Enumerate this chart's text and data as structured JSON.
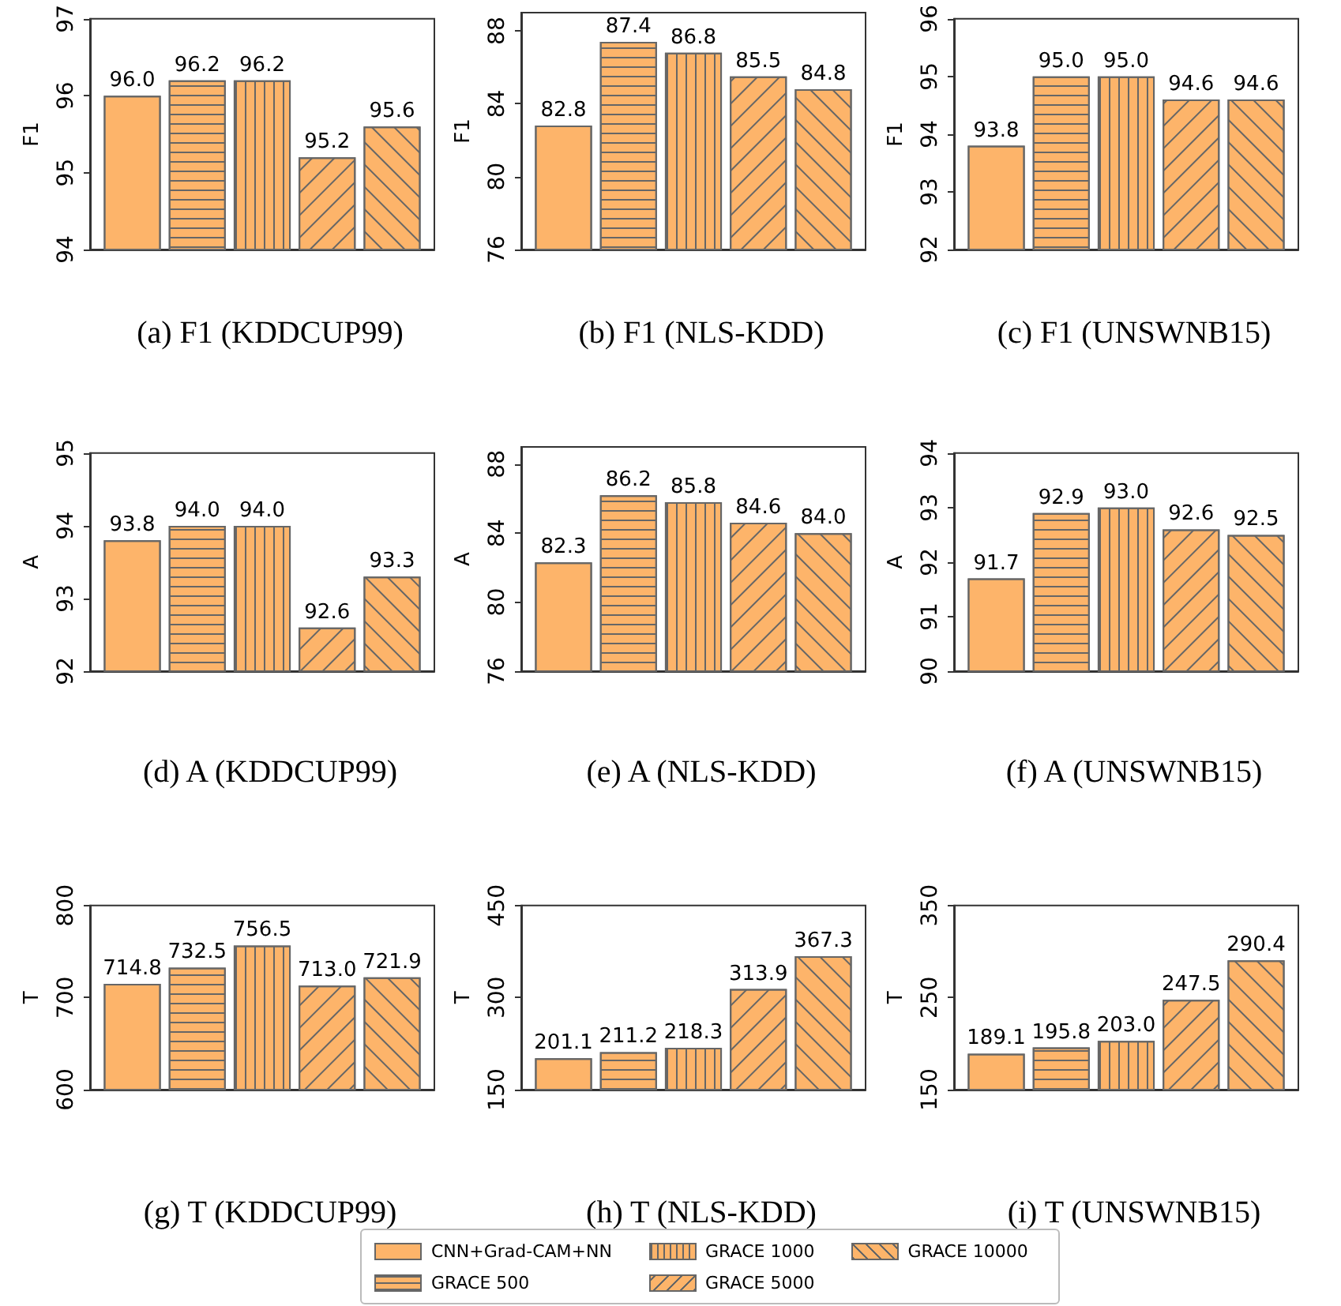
{
  "chart_data": [
    {
      "type": "bar",
      "title": "(a) F1 (KDDCUP99)",
      "ylabel": "F1",
      "categories": [
        null
      ],
      "ylim": [
        94,
        97
      ],
      "yticks": [
        94,
        95,
        96,
        97
      ],
      "tick_labels": "y",
      "legend": "bottom",
      "series": [
        {
          "name": "CNN+Grad-CAM+NN",
          "color": "#fdb46a",
          "values": [
            96.0
          ],
          "value_labels": [
            "96.0"
          ]
        },
        {
          "name": "GRACE 500",
          "color": "#fdb46a",
          "values": [
            96.2
          ],
          "value_labels": [
            "96.2"
          ]
        },
        {
          "name": "GRACE 1000",
          "color": "#fdb46a",
          "values": [
            96.2
          ],
          "value_labels": [
            "96.2"
          ]
        },
        {
          "name": "GRACE 5000",
          "color": "#fdb46a",
          "values": [
            95.2
          ],
          "value_labels": [
            "95.2"
          ]
        },
        {
          "name": "GRACE 10000",
          "color": "#fdb46a",
          "values": [
            95.6
          ],
          "value_labels": [
            "95.6"
          ]
        }
      ]
    },
    {
      "type": "bar",
      "title": "(b) F1 (NLS-KDD)",
      "ylabel": "F1",
      "categories": [
        null
      ],
      "ylim": [
        76,
        89
      ],
      "yticks": [
        76,
        80,
        84,
        88
      ],
      "tick_labels": "y",
      "series": [
        {
          "color": "#fdb46a",
          "values": [
            82.8
          ],
          "value_labels": [
            "82.8"
          ]
        },
        {
          "color": "#fdb46a",
          "values": [
            87.4
          ],
          "value_labels": [
            "87.4"
          ]
        },
        {
          "color": "#fdb46a",
          "values": [
            86.8
          ],
          "value_labels": [
            "86.8"
          ]
        },
        {
          "color": "#fdb46a",
          "values": [
            85.5
          ],
          "value_labels": [
            "85.5"
          ]
        },
        {
          "color": "#fdb46a",
          "values": [
            84.8
          ],
          "value_labels": [
            "84.8"
          ]
        }
      ]
    },
    {
      "type": "bar",
      "title": "(c) F1 (UNSWNB15)",
      "ylabel": "F1",
      "categories": [
        null
      ],
      "ylim": [
        92,
        96
      ],
      "yticks": [
        92,
        93,
        94,
        95,
        96
      ],
      "tick_labels": "y",
      "series": [
        {
          "color": "#fdb46a",
          "values": [
            93.8
          ],
          "value_labels": [
            "93.8"
          ]
        },
        {
          "color": "#fdb46a",
          "values": [
            95.0
          ],
          "value_labels": [
            "95.0"
          ]
        },
        {
          "color": "#fdb46a",
          "values": [
            95.0
          ],
          "value_labels": [
            "95.0"
          ]
        },
        {
          "color": "#fdb46a",
          "values": [
            94.6
          ],
          "value_labels": [
            "94.6"
          ]
        },
        {
          "color": "#fdb46a",
          "values": [
            94.6
          ],
          "value_labels": [
            "94.6"
          ]
        }
      ]
    },
    {
      "type": "bar",
      "title": "(d) A (KDDCUP99)",
      "ylabel": "A",
      "categories": [
        null
      ],
      "ylim": [
        92,
        95
      ],
      "yticks": [
        92,
        93,
        94,
        95
      ],
      "tick_labels": "y",
      "series": [
        {
          "color": "#fdb46a",
          "values": [
            93.8
          ],
          "value_labels": [
            "93.8"
          ]
        },
        {
          "color": "#fdb46a",
          "values": [
            94.0
          ],
          "value_labels": [
            "94.0"
          ]
        },
        {
          "color": "#fdb46a",
          "values": [
            94.0
          ],
          "value_labels": [
            "94.0"
          ]
        },
        {
          "color": "#fdb46a",
          "values": [
            92.6
          ],
          "value_labels": [
            "92.6"
          ]
        },
        {
          "color": "#fdb46a",
          "values": [
            93.3
          ],
          "value_labels": [
            "93.3"
          ]
        }
      ]
    },
    {
      "type": "bar",
      "title": "(e) A (NLS-KDD)",
      "ylabel": "A",
      "categories": [
        null
      ],
      "ylim": [
        76,
        89
      ],
      "yticks": [
        76,
        80,
        84,
        88
      ],
      "tick_labels": "y",
      "series": [
        {
          "color": "#fdb46a",
          "values": [
            82.3
          ],
          "value_labels": [
            "82.3"
          ]
        },
        {
          "color": "#fdb46a",
          "values": [
            86.2
          ],
          "value_labels": [
            "86.2"
          ]
        },
        {
          "color": "#fdb46a",
          "values": [
            85.8
          ],
          "value_labels": [
            "85.8"
          ]
        },
        {
          "color": "#fdb46a",
          "values": [
            84.6
          ],
          "value_labels": [
            "84.6"
          ]
        },
        {
          "color": "#fdb46a",
          "values": [
            84.0
          ],
          "value_labels": [
            "84.0"
          ]
        }
      ]
    },
    {
      "type": "bar",
      "title": "(f) A (UNSWNB15)",
      "ylabel": "A",
      "categories": [
        null
      ],
      "ylim": [
        90,
        94
      ],
      "yticks": [
        90,
        91,
        92,
        93,
        94
      ],
      "tick_labels": "y",
      "series": [
        {
          "color": "#fdb46a",
          "values": [
            91.7
          ],
          "value_labels": [
            "91.7"
          ]
        },
        {
          "color": "#fdb46a",
          "values": [
            92.9
          ],
          "value_labels": [
            "92.9"
          ]
        },
        {
          "color": "#fdb46a",
          "values": [
            93.0
          ],
          "value_labels": [
            "93.0"
          ]
        },
        {
          "color": "#fdb46a",
          "values": [
            92.6
          ],
          "value_labels": [
            "92.6"
          ]
        },
        {
          "color": "#fdb46a",
          "values": [
            92.5
          ],
          "value_labels": [
            "92.5"
          ]
        }
      ]
    },
    {
      "type": "bar",
      "title": "(g) T (KDDCUP99)",
      "ylabel": "T",
      "categories": [
        null
      ],
      "ylim": [
        600,
        800
      ],
      "yticks": [
        600,
        700,
        800
      ],
      "tick_labels": "y",
      "series": [
        {
          "color": "#fdb46a",
          "values": [
            714.8
          ],
          "value_labels": [
            "714.8"
          ]
        },
        {
          "color": "#fdb46a",
          "values": [
            732.5
          ],
          "value_labels": [
            "732.5"
          ]
        },
        {
          "color": "#fdb46a",
          "values": [
            756.5
          ],
          "value_labels": [
            "756.5"
          ]
        },
        {
          "color": "#fdb46a",
          "values": [
            713.0
          ],
          "value_labels": [
            "713.0"
          ]
        },
        {
          "color": "#fdb46a",
          "values": [
            721.9
          ],
          "value_labels": [
            "721.9"
          ]
        }
      ]
    },
    {
      "type": "bar",
      "title": "(h) T (NLS-KDD)",
      "ylabel": "T",
      "categories": [
        null
      ],
      "ylim": [
        150,
        450
      ],
      "yticks": [
        150,
        300,
        450
      ],
      "tick_labels": "y",
      "series": [
        {
          "color": "#fdb46a",
          "values": [
            201.1
          ],
          "value_labels": [
            "201.1"
          ]
        },
        {
          "color": "#fdb46a",
          "values": [
            211.2
          ],
          "value_labels": [
            "211.2"
          ]
        },
        {
          "color": "#fdb46a",
          "values": [
            218.3
          ],
          "value_labels": [
            "218.3"
          ]
        },
        {
          "color": "#fdb46a",
          "values": [
            313.9
          ],
          "value_labels": [
            "313.9"
          ]
        },
        {
          "color": "#fdb46a",
          "values": [
            367.3
          ],
          "value_labels": [
            "367.3"
          ]
        }
      ]
    },
    {
      "type": "bar",
      "title": "(i) T (UNSWNB15)",
      "ylabel": "T",
      "categories": [
        null
      ],
      "ylim": [
        150,
        350
      ],
      "yticks": [
        150,
        250,
        350
      ],
      "tick_labels": "y",
      "series": [
        {
          "color": "#fdb46a",
          "values": [
            189.1
          ],
          "value_labels": [
            "189.1"
          ]
        },
        {
          "color": "#fdb46a",
          "values": [
            195.8
          ],
          "value_labels": [
            "195.8"
          ]
        },
        {
          "color": "#fdb46a",
          "values": [
            203.0
          ],
          "value_labels": [
            "203.0"
          ]
        },
        {
          "color": "#fdb46a",
          "values": [
            247.5
          ],
          "value_labels": [
            "247.5"
          ]
        },
        {
          "color": "#fdb46a",
          "values": [
            290.4
          ],
          "value_labels": [
            "290.4"
          ]
        }
      ]
    }
  ]
}
